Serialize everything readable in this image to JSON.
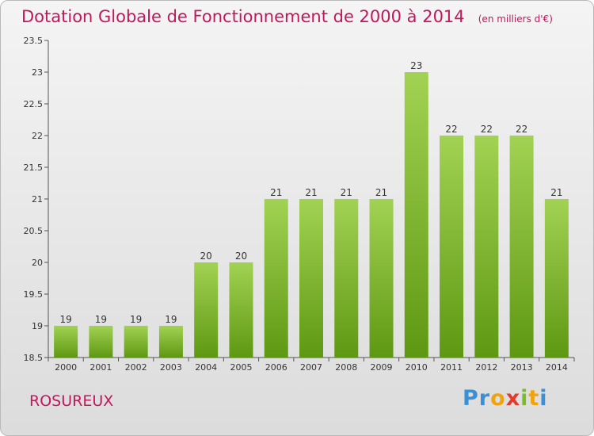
{
  "chart_data": {
    "type": "bar",
    "title": "Dotation Globale de Fonctionnement de 2000 à 2014",
    "subtitle": "(en milliers d'€)",
    "categories": [
      "2000",
      "2001",
      "2002",
      "2003",
      "2004",
      "2005",
      "2006",
      "2007",
      "2008",
      "2009",
      "2010",
      "2011",
      "2012",
      "2013",
      "2014"
    ],
    "values": [
      19,
      19,
      19,
      19,
      20,
      20,
      21,
      21,
      21,
      21,
      23,
      22,
      22,
      22,
      21
    ],
    "value_labels": [
      "19",
      "19",
      "19",
      "19",
      "20",
      "20",
      "21",
      "21",
      "21",
      "21",
      "23",
      "22",
      "22",
      "22",
      "21"
    ],
    "yticks": [
      "18.5",
      "19",
      "19.5",
      "20",
      "20.5",
      "21",
      "21.5",
      "22",
      "22.5",
      "23",
      "23.5"
    ],
    "ylim": [
      18.5,
      23.5
    ],
    "grid": false,
    "colors": {
      "bar_top": "#a2d253",
      "bar_bottom": "#5e9812",
      "title": "#c0185b",
      "axis": "#555555"
    }
  },
  "commune": "ROSUREUX",
  "logo": {
    "letters": [
      "P",
      "r",
      "o",
      "x",
      "i",
      "t",
      "i"
    ],
    "colors": [
      "#3b8fd6",
      "#3b8fd6",
      "#f0a30a",
      "#e23a2e",
      "#7cbc2c",
      "#f0a30a",
      "#3b8fd6"
    ]
  }
}
